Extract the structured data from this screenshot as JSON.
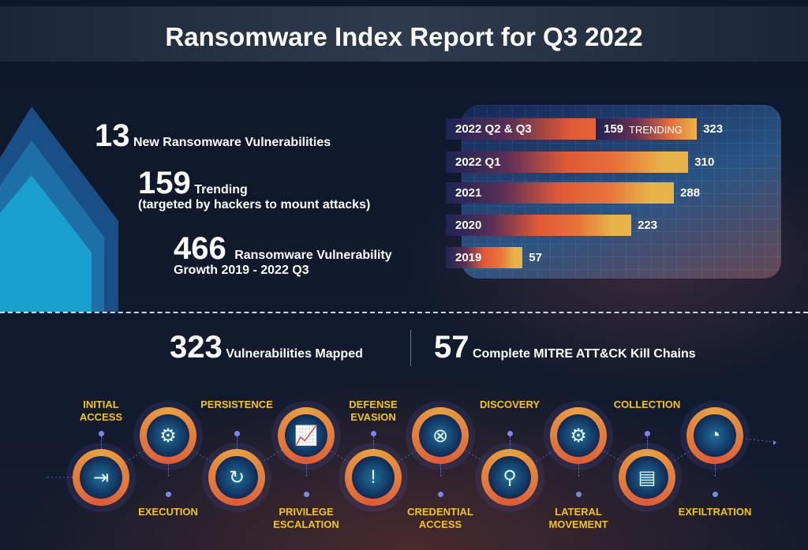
{
  "title": "Ransomware Index Report for Q3 2022",
  "stats": {
    "s1": {
      "num": "13",
      "label": "New Ransomware Vulnerabilities"
    },
    "s2": {
      "num": "159",
      "label": "Trending",
      "sub": "(targeted by hackers to mount attacks)"
    },
    "s3": {
      "num": "466",
      "label": "Ransomware Vulnerability",
      "sub": "Growth 2019 - 2022 Q3"
    },
    "s4": {
      "num": "323",
      "label": "Vulnerabilities Mapped"
    },
    "s5": {
      "num": "57",
      "label": "Complete MITRE ATT&CK Kill Chains"
    }
  },
  "chart_data": {
    "type": "bar",
    "orientation": "horizontal",
    "categories": [
      "2022 Q2 & Q3",
      "2022 Q1",
      "2021",
      "2020",
      "2019"
    ],
    "values": [
      323,
      310,
      288,
      223,
      57
    ],
    "value_labels": [
      "323",
      "310",
      "288",
      "223",
      "57"
    ],
    "annotation": {
      "category": "2022 Q2 & Q3",
      "value": 159,
      "number": "159",
      "text": "TRENDING"
    },
    "colors": {
      "start": "#1c2455",
      "mid": "#e05a36",
      "end": "#e8b44a"
    }
  },
  "kill_chain": [
    {
      "label": "INITIAL ACCESS",
      "icon": "door-enter-icon",
      "pos": "down"
    },
    {
      "label": "EXECUTION",
      "icon": "gear-check-icon",
      "pos": "up"
    },
    {
      "label": "PERSISTENCE",
      "icon": "gear-cycle-icon",
      "pos": "down"
    },
    {
      "label": "PRIVILEGE ESCALATION",
      "icon": "chart-up-icon",
      "pos": "up"
    },
    {
      "label": "DEFENSE EVASION",
      "icon": "shield-alert-icon",
      "pos": "down"
    },
    {
      "label": "CREDENTIAL ACCESS",
      "icon": "target-icon",
      "pos": "up"
    },
    {
      "label": "DISCOVERY",
      "icon": "magnifier-icon",
      "pos": "down"
    },
    {
      "label": "LATERAL MOVEMENT",
      "icon": "gear-icon",
      "pos": "up"
    },
    {
      "label": "COLLECTION",
      "icon": "folder-icon",
      "pos": "down"
    },
    {
      "label": "EXFILTRATION",
      "icon": "radar-icon",
      "pos": "up"
    }
  ],
  "accent": "#f0c51a"
}
